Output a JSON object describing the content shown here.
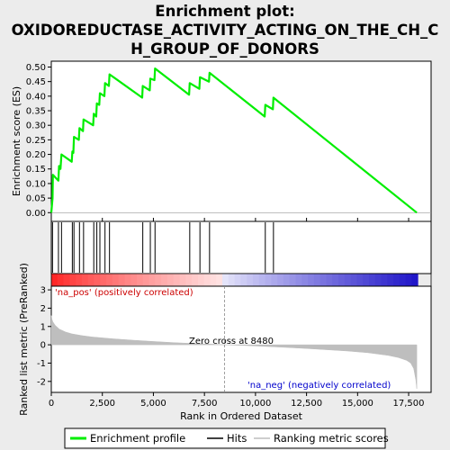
{
  "chart_data": {
    "type": "line",
    "title_lines": [
      "Enrichment plot:",
      "OXIDOREDUCTASE_ACTIVITY_ACTING_ON_THE_CH_C",
      "H_GROUP_OF_DONORS"
    ],
    "es_panel": {
      "ylabel": "Enrichment score (ES)",
      "ylim": [
        -0.03,
        0.52
      ],
      "yticks": [
        "0.00",
        "0.05",
        "0.10",
        "0.15",
        "0.20",
        "0.25",
        "0.30",
        "0.35",
        "0.40",
        "0.45",
        "0.50"
      ],
      "ytick_values": [
        0,
        0.05,
        0.1,
        0.15,
        0.2,
        0.25,
        0.3,
        0.35,
        0.4,
        0.45,
        0.5
      ],
      "series": [
        {
          "name": "Enrichment profile",
          "color": "#00ee00",
          "x": [
            0,
            60,
            80,
            350,
            380,
            450,
            500,
            1000,
            1030,
            1080,
            1110,
            1350,
            1380,
            1550,
            1580,
            2050,
            2080,
            2200,
            2230,
            2350,
            2380,
            2600,
            2630,
            2820,
            2850,
            4450,
            4480,
            4820,
            4850,
            5050,
            5080,
            6750,
            6780,
            7250,
            7280,
            7720,
            7750,
            10450,
            10480,
            10850,
            10880,
            17900
          ],
          "y": [
            0.0,
            0.05,
            0.13,
            0.11,
            0.16,
            0.15,
            0.2,
            0.175,
            0.21,
            0.205,
            0.26,
            0.25,
            0.29,
            0.28,
            0.32,
            0.3,
            0.34,
            0.33,
            0.375,
            0.37,
            0.41,
            0.4,
            0.445,
            0.435,
            0.475,
            0.395,
            0.435,
            0.42,
            0.46,
            0.455,
            0.495,
            0.405,
            0.445,
            0.425,
            0.465,
            0.45,
            0.48,
            0.33,
            0.37,
            0.355,
            0.395,
            0.0
          ]
        }
      ]
    },
    "hits": {
      "name": "Hits",
      "color": "#000000",
      "positions": [
        60,
        350,
        500,
        1030,
        1110,
        1380,
        1580,
        2080,
        2230,
        2380,
        2630,
        2850,
        4480,
        4850,
        5080,
        6780,
        7280,
        7750,
        10480,
        10880
      ]
    },
    "rank_panel": {
      "ylabel": "Ranked list metric (PreRanked)",
      "xlabel": "Rank in Ordered Dataset",
      "ylim": [
        -2.6,
        3.2
      ],
      "yticks": [
        "-2",
        "-1",
        "0",
        "1",
        "2",
        "3"
      ],
      "ytick_values": [
        -2,
        -1,
        0,
        1,
        2,
        3
      ],
      "xlim": [
        0,
        18600
      ],
      "xticks": [
        "0",
        "2,500",
        "5,000",
        "7,500",
        "10,000",
        "12,500",
        "15,000",
        "17,500"
      ],
      "xtick_values": [
        0,
        2500,
        5000,
        7500,
        10000,
        12500,
        15000,
        17500
      ],
      "n_genes": 17950,
      "zero_cross": 8480,
      "zero_cross_label": "Zero cross at 8480",
      "pos_label": "'na_pos' (positively correlated)",
      "neg_label": "'na_neg' (negatively correlated)",
      "series": [
        {
          "name": "Ranking metric scores",
          "color": "#bebebe",
          "x": [
            0,
            30,
            80,
            200,
            400,
            700,
            1000,
            1500,
            2000,
            3000,
            4000,
            5000,
            6000,
            7000,
            8000,
            8480,
            9500,
            10500,
            11500,
            12500,
            13500,
            14500,
            15500,
            16500,
            17000,
            17400,
            17600,
            17750,
            17850,
            17900
          ],
          "y": [
            1.6,
            1.4,
            1.25,
            1.05,
            0.85,
            0.7,
            0.6,
            0.5,
            0.43,
            0.33,
            0.25,
            0.18,
            0.12,
            0.07,
            0.03,
            0.0,
            -0.04,
            -0.09,
            -0.14,
            -0.2,
            -0.27,
            -0.34,
            -0.43,
            -0.58,
            -0.7,
            -0.85,
            -1.0,
            -1.3,
            -1.9,
            -2.4
          ]
        }
      ]
    },
    "legend": [
      {
        "label": "Enrichment profile",
        "color": "#00ee00"
      },
      {
        "label": "Hits",
        "color": "#000000"
      },
      {
        "label": "Ranking metric scores",
        "color": "#bebebe"
      }
    ],
    "colors": {
      "es_line": "#00ee00",
      "pos_label": "#cc0000",
      "neg_label": "#0000cc",
      "zero_cross_line": "#888888"
    }
  }
}
